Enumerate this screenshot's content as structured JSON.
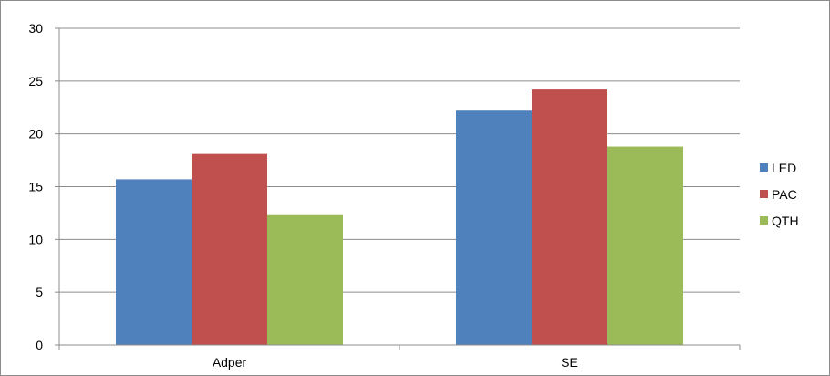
{
  "chart_data": {
    "type": "bar",
    "title": "",
    "xlabel": "",
    "ylabel": "",
    "categories": [
      "Adper",
      "SE"
    ],
    "series": [
      {
        "name": "LED",
        "values": [
          15.7,
          22.2
        ],
        "color": "#4f81bd"
      },
      {
        "name": "PAC",
        "values": [
          18.1,
          24.2
        ],
        "color": "#c0504d"
      },
      {
        "name": "QTH",
        "values": [
          12.3,
          18.8
        ],
        "color": "#9bbb59"
      }
    ],
    "ylim": [
      0,
      30
    ],
    "yticks": [
      "0",
      "5",
      "10",
      "15",
      "20",
      "25",
      "30"
    ],
    "grid": true,
    "legend_position": "right"
  }
}
